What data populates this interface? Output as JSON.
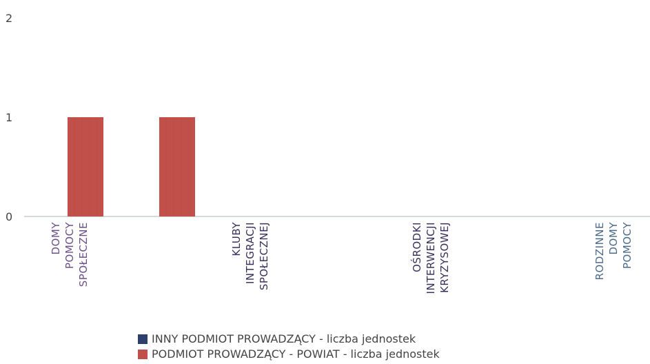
{
  "chart_data": {
    "type": "bar",
    "categories": [
      [
        "DOMY",
        "POMOCY",
        "SPOŁECZNE"
      ],
      [
        "KLUBY",
        "INTEGRACJI",
        "SPOŁECZNEJ"
      ],
      [
        "OŚRODKI",
        "INTERWENCJI",
        "KRYZYSOWEJ"
      ],
      [
        "RODZINNE",
        "DOMY",
        "POMOCY"
      ]
    ],
    "category_colors": [
      "#6b4f8a",
      "#3a2f5c",
      "#3a2f5c",
      "#4b6a8a"
    ],
    "series": [
      {
        "name": "INNY PODMIOT PROWADZĄCY - liczba jednostek",
        "color": "#2f3f6b",
        "values": [
          0,
          0,
          0,
          0
        ]
      },
      {
        "name": "PODMIOT PROWADZĄCY - POWIAT - liczba jednostek",
        "color": "#c2504a",
        "values": [
          1,
          1,
          0,
          0
        ]
      }
    ],
    "ylim": [
      0,
      2
    ],
    "yticks": [
      "0",
      "1",
      "2"
    ],
    "legend_position": "bottom",
    "grid": false
  }
}
